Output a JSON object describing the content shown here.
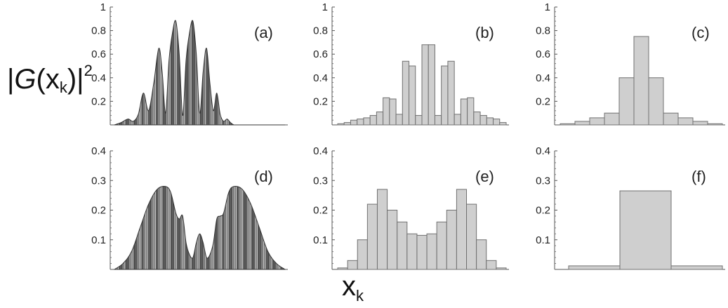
{
  "figure": {
    "ylabel_main": "|G(x",
    "ylabel_sub": "k",
    "ylabel_close": ")|",
    "ylabel_sup": "2",
    "xlabel_main": "x",
    "xlabel_sub": "k"
  },
  "chart_data": [
    {
      "type": "area",
      "panel": "(a)",
      "ylim": [
        0,
        1
      ],
      "yticks": [
        "0.2",
        "0.4",
        "0.6",
        "0.8",
        "1"
      ],
      "x": [
        0,
        0.04,
        0.08,
        0.11,
        0.14,
        0.17,
        0.2,
        0.23,
        0.26,
        0.28,
        0.3,
        0.32,
        0.34,
        0.36,
        0.38,
        0.4,
        0.42,
        0.44,
        0.46,
        0.48,
        0.5,
        0.52,
        0.54,
        0.56,
        0.58,
        0.6,
        0.62,
        0.64,
        0.66,
        0.68,
        0.7,
        0.72,
        0.74,
        0.77,
        0.8,
        0.83,
        0.86,
        0.89,
        0.92,
        0.96,
        1.0
      ],
      "values": [
        0,
        0.02,
        0.05,
        0.03,
        0.09,
        0.27,
        0.12,
        0.35,
        0.65,
        0.45,
        0.1,
        0.55,
        0.78,
        0.88,
        0.6,
        0.08,
        0.55,
        0.78,
        0.88,
        0.6,
        0.1,
        0.45,
        0.65,
        0.35,
        0.12,
        0.27,
        0.09,
        0.03,
        0.05,
        0.02,
        0.0,
        0,
        0,
        0,
        0,
        0,
        0,
        0,
        0,
        0,
        0
      ]
    },
    {
      "type": "bar",
      "panel": "(b)",
      "ylim": [
        0,
        1
      ],
      "yticks": [
        "0.2",
        "0.4",
        "0.6",
        "0.8",
        "1"
      ],
      "values": [
        0.01,
        0.02,
        0.04,
        0.05,
        0.06,
        0.08,
        0.11,
        0.23,
        0.22,
        0.09,
        0.54,
        0.5,
        0.08,
        0.68,
        0.68,
        0.08,
        0.5,
        0.54,
        0.09,
        0.22,
        0.23,
        0.11,
        0.08,
        0.06,
        0.05,
        0.02
      ]
    },
    {
      "type": "bar",
      "panel": "(c)",
      "ylim": [
        0,
        1
      ],
      "yticks": [
        "0.2",
        "0.4",
        "0.6",
        "0.8",
        "1"
      ],
      "values": [
        0.01,
        0.03,
        0.06,
        0.1,
        0.4,
        0.75,
        0.4,
        0.1,
        0.06,
        0.03,
        0.01
      ]
    },
    {
      "type": "area",
      "panel": "(d)",
      "ylim": [
        0,
        0.4
      ],
      "yticks": [
        "0.1",
        "0.2",
        "0.3",
        "0.4"
      ],
      "x": [
        0,
        0.05,
        0.1,
        0.15,
        0.2,
        0.25,
        0.3,
        0.33,
        0.36,
        0.38,
        0.4,
        0.42,
        0.44,
        0.46,
        0.48,
        0.5,
        0.52,
        0.54,
        0.56,
        0.58,
        0.6,
        0.62,
        0.64,
        0.67,
        0.7,
        0.75,
        0.8,
        0.85,
        0.9,
        0.95,
        1.0
      ],
      "values": [
        0,
        0.02,
        0.06,
        0.14,
        0.22,
        0.27,
        0.28,
        0.26,
        0.19,
        0.17,
        0.18,
        0.09,
        0.05,
        0.04,
        0.09,
        0.12,
        0.09,
        0.04,
        0.05,
        0.09,
        0.17,
        0.18,
        0.19,
        0.26,
        0.28,
        0.27,
        0.22,
        0.14,
        0.06,
        0.02,
        0
      ]
    },
    {
      "type": "bar",
      "panel": "(e)",
      "ylim": [
        0,
        0.4
      ],
      "yticks": [
        "0.1",
        "0.2",
        "0.3",
        "0.4"
      ],
      "values": [
        0.005,
        0.03,
        0.1,
        0.22,
        0.27,
        0.2,
        0.16,
        0.12,
        0.115,
        0.12,
        0.16,
        0.2,
        0.27,
        0.22,
        0.1,
        0.03,
        0.005
      ]
    },
    {
      "type": "bar",
      "panel": "(f)",
      "ylim": [
        0,
        0.4
      ],
      "yticks": [
        "0.1",
        "0.2",
        "0.3",
        "0.4"
      ],
      "values": [
        0.012,
        0.265,
        0.012
      ]
    }
  ]
}
